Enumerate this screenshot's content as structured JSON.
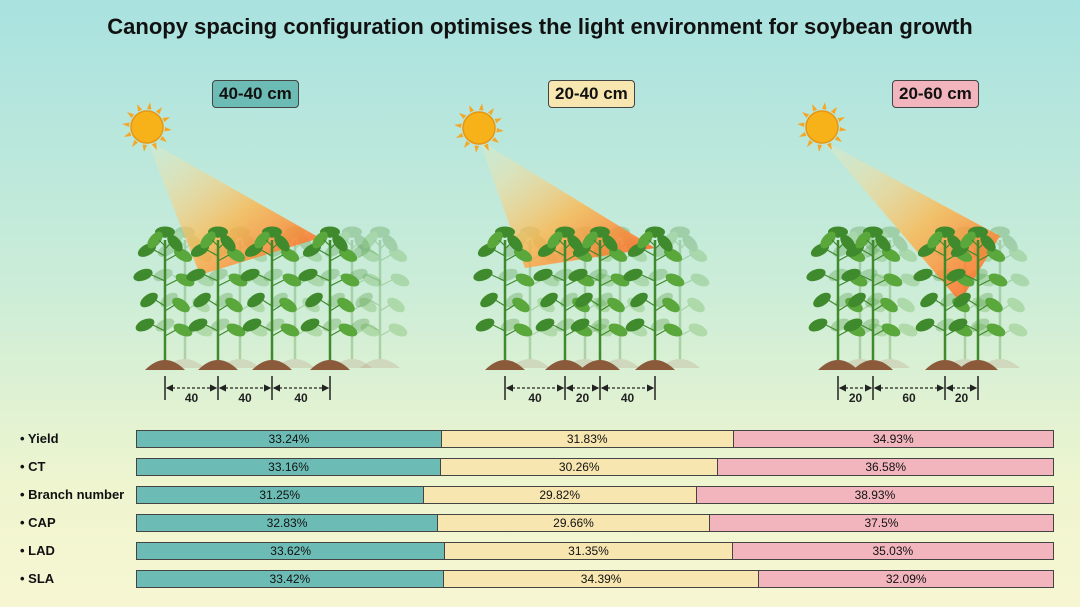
{
  "title": "Canopy spacing configuration optimises the light environment for soybean growth",
  "configs": [
    {
      "label": "40-40 cm",
      "color": "#6cbcb5",
      "spacings": [
        "40",
        "40",
        "40"
      ]
    },
    {
      "label": "20-40 cm",
      "color": "#f7e6b0",
      "spacings": [
        "40",
        "20",
        "40"
      ]
    },
    {
      "label": "20-60 cm",
      "color": "#f2b5bd",
      "spacings": [
        "20",
        "60",
        "20"
      ]
    }
  ],
  "icons": {
    "sun": "sun-icon",
    "plant": "soybean-plant-icon",
    "soil": "soil-mound-icon"
  },
  "metrics": [
    {
      "name": "Yield",
      "values": [
        33.24,
        31.83,
        34.93
      ],
      "labels": [
        "33.24%",
        "31.83%",
        "34.93%"
      ]
    },
    {
      "name": "CT",
      "values": [
        33.16,
        30.26,
        36.58
      ],
      "labels": [
        "33.16%",
        "30.26%",
        "36.58%"
      ]
    },
    {
      "name": "Branch number",
      "values": [
        31.25,
        29.82,
        38.93
      ],
      "labels": [
        "31.25%",
        "29.82%",
        "38.93%"
      ]
    },
    {
      "name": "CAP",
      "values": [
        32.83,
        29.66,
        37.5
      ],
      "labels": [
        "32.83%",
        "29.66%",
        "37.5%"
      ]
    },
    {
      "name": "LAD",
      "values": [
        33.62,
        31.35,
        35.03
      ],
      "labels": [
        "33.62%",
        "31.35%",
        "35.03%"
      ]
    },
    {
      "name": "SLA",
      "values": [
        33.42,
        34.39,
        32.09
      ],
      "labels": [
        "33.42%",
        "34.39%",
        "32.09%"
      ]
    }
  ]
}
